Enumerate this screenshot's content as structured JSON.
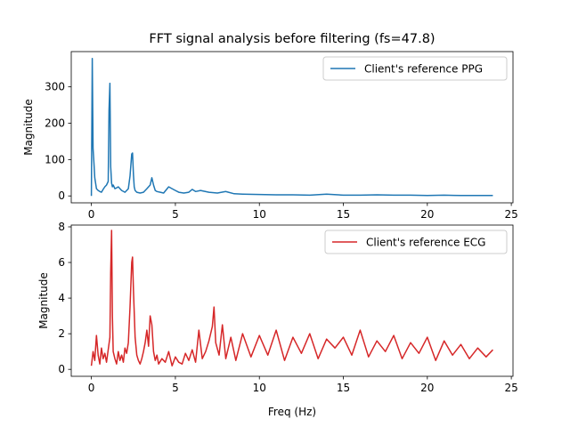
{
  "figure": {
    "title": "FFT signal analysis before filtering (fs=47.8)"
  },
  "chart_data": [
    {
      "type": "line",
      "title": "FFT signal analysis before filtering (fs=47.8)",
      "xlabel": "",
      "ylabel": "Magnitude",
      "xlim": [
        -1.2,
        25.1
      ],
      "ylim": [
        -19,
        397
      ],
      "xticks": [
        0,
        5,
        10,
        15,
        20,
        25
      ],
      "yticks": [
        0,
        100,
        200,
        300
      ],
      "legend": "top-right",
      "grid": false,
      "series": [
        {
          "name": "Client's reference PPG",
          "color": "#1f77b4",
          "x": [
            0,
            0.05,
            0.1,
            0.15,
            0.2,
            0.3,
            0.4,
            0.5,
            0.6,
            0.7,
            0.8,
            0.9,
            1.0,
            1.05,
            1.1,
            1.15,
            1.2,
            1.25,
            1.3,
            1.4,
            1.5,
            1.6,
            1.8,
            2.0,
            2.2,
            2.3,
            2.4,
            2.45,
            2.5,
            2.55,
            2.6,
            2.7,
            2.9,
            3.1,
            3.3,
            3.5,
            3.6,
            3.7,
            3.8,
            3.9,
            4.1,
            4.3,
            4.6,
            4.8,
            5.0,
            5.2,
            5.5,
            5.8,
            6.0,
            6.2,
            6.5,
            7.0,
            7.5,
            8.0,
            8.5,
            9.0,
            10,
            11,
            12,
            13,
            14,
            15,
            16,
            17,
            18,
            19,
            20,
            21,
            22,
            23,
            23.9
          ],
          "values": [
            0,
            378,
            130,
            90,
            50,
            20,
            15,
            12,
            10,
            18,
            25,
            30,
            40,
            235,
            310,
            80,
            35,
            25,
            30,
            20,
            22,
            25,
            15,
            10,
            20,
            55,
            115,
            118,
            60,
            25,
            15,
            10,
            8,
            10,
            20,
            30,
            50,
            30,
            15,
            12,
            10,
            8,
            25,
            20,
            15,
            10,
            8,
            10,
            18,
            12,
            15,
            10,
            8,
            12,
            6,
            5,
            4,
            3,
            3,
            2,
            5,
            2,
            2,
            3,
            2,
            2,
            1,
            2,
            1,
            1,
            1
          ]
        }
      ]
    },
    {
      "type": "line",
      "title": "",
      "xlabel": "Freq (Hz)",
      "ylabel": "Magnitude",
      "xlim": [
        -1.2,
        25.1
      ],
      "ylim": [
        -0.39,
        8.1
      ],
      "xticks": [
        0,
        5,
        10,
        15,
        20,
        25
      ],
      "yticks": [
        0,
        2,
        4,
        6,
        8
      ],
      "legend": "top-right",
      "grid": false,
      "series": [
        {
          "name": "Client's reference ECG",
          "color": "#d62728",
          "x": [
            0,
            0.1,
            0.2,
            0.3,
            0.4,
            0.5,
            0.6,
            0.7,
            0.8,
            0.9,
            1.0,
            1.1,
            1.15,
            1.2,
            1.25,
            1.3,
            1.4,
            1.5,
            1.6,
            1.7,
            1.8,
            1.9,
            2.0,
            2.1,
            2.2,
            2.3,
            2.4,
            2.45,
            2.5,
            2.6,
            2.7,
            2.8,
            2.9,
            3.0,
            3.1,
            3.2,
            3.3,
            3.4,
            3.5,
            3.6,
            3.7,
            3.8,
            3.9,
            4.0,
            4.2,
            4.4,
            4.6,
            4.8,
            5.0,
            5.2,
            5.4,
            5.6,
            5.8,
            6.0,
            6.2,
            6.4,
            6.6,
            6.8,
            7.0,
            7.2,
            7.3,
            7.4,
            7.6,
            7.8,
            8.0,
            8.3,
            8.6,
            9.0,
            9.5,
            10,
            10.5,
            11,
            11.5,
            12,
            12.5,
            13,
            13.5,
            14,
            14.5,
            15,
            15.5,
            16,
            16.5,
            17,
            17.5,
            18,
            18.5,
            19,
            19.5,
            20,
            20.5,
            21,
            21.5,
            22,
            22.5,
            23,
            23.5,
            23.9
          ],
          "values": [
            0.2,
            1.0,
            0.5,
            1.9,
            0.8,
            0.3,
            1.2,
            0.6,
            0.9,
            0.4,
            1.1,
            1.8,
            5.5,
            7.8,
            3.0,
            1.0,
            0.6,
            0.3,
            1.0,
            0.5,
            0.8,
            0.4,
            1.2,
            0.9,
            1.5,
            3.5,
            6.0,
            6.3,
            4.5,
            1.8,
            0.8,
            0.5,
            0.3,
            0.6,
            1.0,
            1.5,
            2.2,
            1.3,
            3.0,
            2.5,
            1.0,
            0.5,
            0.8,
            0.3,
            0.6,
            0.4,
            1.0,
            0.2,
            0.7,
            0.4,
            0.3,
            0.9,
            0.5,
            1.1,
            0.4,
            2.2,
            0.6,
            1.0,
            1.6,
            2.4,
            3.5,
            1.5,
            0.8,
            2.5,
            0.6,
            1.8,
            0.5,
            2.0,
            0.7,
            1.9,
            0.8,
            2.2,
            0.5,
            1.8,
            0.9,
            2.0,
            0.6,
            1.7,
            1.2,
            1.8,
            0.8,
            2.2,
            0.7,
            1.6,
            1.0,
            1.9,
            0.6,
            1.5,
            0.9,
            1.8,
            0.5,
            1.6,
            0.8,
            1.4,
            0.6,
            1.2,
            0.7,
            1.1
          ]
        }
      ]
    }
  ]
}
